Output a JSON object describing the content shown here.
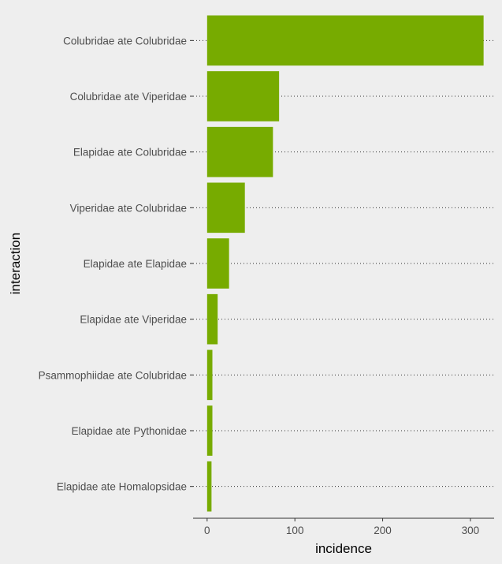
{
  "chart_data": {
    "type": "bar",
    "orientation": "horizontal",
    "categories": [
      "Colubridae ate Colubridae",
      "Colubridae ate Viperidae",
      "Elapidae ate Colubridae",
      "Viperidae ate Colubridae",
      "Elapidae ate Elapidae",
      "Elapidae ate Viperidae",
      "Psammophiidae ate Colubridae",
      "Elapidae ate Pythonidae",
      "Elapidae ate Homalopsidae"
    ],
    "values": [
      315,
      82,
      75,
      43,
      25,
      12,
      6,
      6,
      5
    ],
    "xlabel": "incidence",
    "ylabel": "interaction",
    "xlim": [
      -16,
      327
    ],
    "xticks": [
      0,
      100,
      200,
      300
    ],
    "grid": "dotted horizontal",
    "legend": "none",
    "bar_color": "#77ab00",
    "background_color": "#eeeeee"
  }
}
